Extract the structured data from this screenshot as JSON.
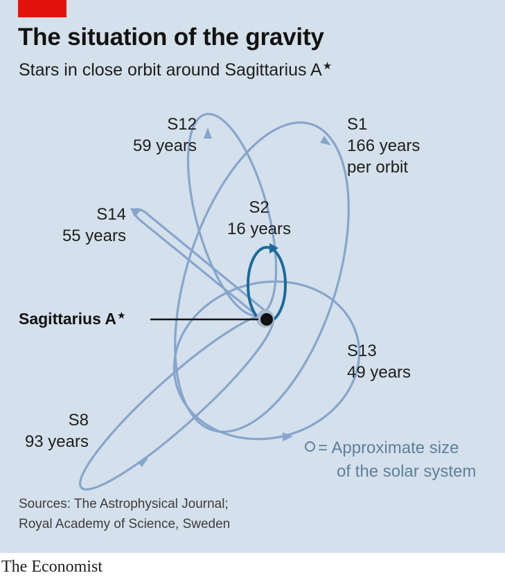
{
  "title": "The situation of the gravity",
  "subtitle": "Stars in close orbit around Sagittarius A",
  "subtitle_symbol": "★",
  "center": {
    "label": "Sagittarius A",
    "symbol": "★"
  },
  "orbits": [
    {
      "name": "S12",
      "period": "59 years"
    },
    {
      "name": "S1",
      "period": "166 years",
      "period_extra": "per orbit"
    },
    {
      "name": "S14",
      "period": "55 years"
    },
    {
      "name": "S2",
      "period": "16 years"
    },
    {
      "name": "S13",
      "period": "49 years"
    },
    {
      "name": "S8",
      "period": "93 years"
    }
  ],
  "legend": {
    "prefix": "= Approximate size",
    "suffix": "of the solar system"
  },
  "sources": {
    "line1": "Sources: The Astrophysical Journal;",
    "line2": "Royal Academy of Science, Sweden"
  },
  "brand": "The Economist",
  "colors": {
    "orbit": "#86a5cc",
    "s2_orbit": "#1b6b9c",
    "panel": "#d4e0eb",
    "red_tag": "#e3120b"
  }
}
